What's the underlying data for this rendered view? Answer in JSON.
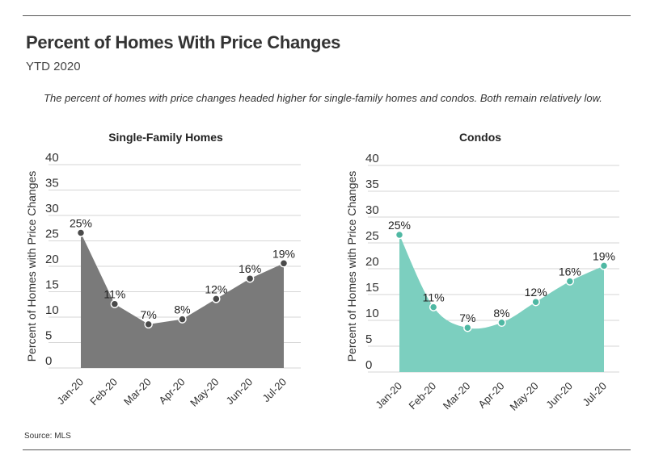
{
  "header": {
    "title": "Percent of Homes With Price Changes",
    "subtitle": "YTD 2020",
    "description": "The percent of homes with price changes headed higher for single-family homes and condos. Both remain relatively low."
  },
  "footer": {
    "source": "Source:  MLS"
  },
  "colors": {
    "single_family": "#7a7a7a",
    "single_family_marker": "#4a4a4a",
    "condos": "#7ccfbf",
    "condos_marker": "#4fb8a3"
  },
  "chart_data": [
    {
      "type": "area",
      "title": "Single-Family Homes",
      "ylabel": "Percent of Homes with Price Changes",
      "xlabel": "",
      "categories": [
        "Jan-20",
        "Feb-20",
        "Mar-20",
        "Apr-20",
        "May-20",
        "Jun-20",
        "Jul-20"
      ],
      "values": [
        25,
        11,
        7,
        8,
        12,
        16,
        19
      ],
      "data_labels": [
        "25%",
        "11%",
        "7%",
        "8%",
        "12%",
        "16%",
        "19%"
      ],
      "yticks": [
        "0",
        "5",
        "10",
        "15",
        "20",
        "25",
        "30",
        "35",
        "40"
      ],
      "ylim": [
        0,
        40
      ],
      "grid": true,
      "smooth": false
    },
    {
      "type": "area",
      "title": "Condos",
      "ylabel": "Percent of Homes with Price Changes",
      "xlabel": "",
      "categories": [
        "Jan-20",
        "Feb-20",
        "Mar-20",
        "Apr-20",
        "May-20",
        "Jun-20",
        "Jul-20"
      ],
      "values": [
        25,
        11,
        7,
        8,
        12,
        16,
        19
      ],
      "data_labels": [
        "25%",
        "11%",
        "7%",
        "8%",
        "12%",
        "16%",
        "19%"
      ],
      "yticks": [
        "0",
        "5",
        "10",
        "15",
        "20",
        "25",
        "30",
        "35",
        "40"
      ],
      "ylim": [
        0,
        40
      ],
      "grid": true,
      "smooth": true
    }
  ]
}
